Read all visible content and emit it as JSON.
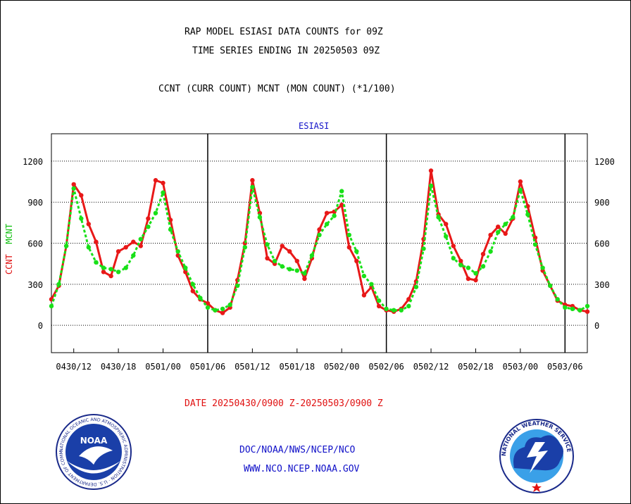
{
  "header": {
    "title_line1": "RAP MODEL ESIASI DATA COUNTS for 09Z",
    "title_line2": "TIME SERIES ENDING IN 20250503 09Z",
    "subtitle": "CCNT (CURR COUNT) MCNT (MON COUNT) (*1/100)"
  },
  "footer": {
    "org_line1": "DOC/NOAA/NWS/NCEP/NCO",
    "org_line2": "WWW.NCO.NCEP.NOAA.GOV",
    "noaa_logo_text": "NOAA",
    "noaa_ring_text": "NATIONAL OCEANIC AND ATMOSPHERIC ADMINISTRATION · U.S. DEPARTMENT OF COMMERCE",
    "nws_ring_text": "NATIONAL WEATHER SERVICE"
  },
  "colors": {
    "ccnt": "#e81818",
    "mcnt": "#18e018",
    "label_blue": "#1010c8",
    "axis_red": "#e01010"
  },
  "chart_data": {
    "type": "line",
    "panel_label": "ESIASI",
    "title": "RAP MODEL ESIASI DATA COUNTS for 09Z",
    "xlabel": "DATE 20250430/0900 Z-20250503/0900 Z",
    "ylabel_ccnt": "CCNT",
    "ylabel_mcnt": "MCNT",
    "ylim": [
      -200,
      1400
    ],
    "yticks": [
      0,
      300,
      600,
      900,
      1200
    ],
    "xlim": [
      0,
      72
    ],
    "xticks": [
      {
        "label": "0430/12",
        "x": 3
      },
      {
        "label": "0430/18",
        "x": 9
      },
      {
        "label": "0501/00",
        "x": 15
      },
      {
        "label": "0501/06",
        "x": 21
      },
      {
        "label": "0501/12",
        "x": 27
      },
      {
        "label": "0501/18",
        "x": 33
      },
      {
        "label": "0502/00",
        "x": 39
      },
      {
        "label": "0502/06",
        "x": 45
      },
      {
        "label": "0502/12",
        "x": 51
      },
      {
        "label": "0502/18",
        "x": 57
      },
      {
        "label": "0503/00",
        "x": 63
      },
      {
        "label": "0503/06",
        "x": 69
      }
    ],
    "day_dividers": [
      21,
      45,
      69
    ],
    "grid": true,
    "series": [
      {
        "name": "CCNT",
        "color": "#e81818",
        "values": [
          190,
          290,
          580,
          1030,
          950,
          740,
          610,
          390,
          360,
          540,
          570,
          610,
          580,
          780,
          1060,
          1040,
          770,
          510,
          390,
          250,
          190,
          160,
          110,
          90,
          130,
          330,
          600,
          1060,
          820,
          490,
          450,
          580,
          540,
          470,
          340,
          490,
          700,
          820,
          830,
          880,
          570,
          470,
          220,
          280,
          140,
          110,
          100,
          120,
          190,
          320,
          630,
          1130,
          810,
          740,
          580,
          470,
          340,
          330,
          520,
          660,
          720,
          670,
          780,
          1050,
          870,
          640,
          400,
          290,
          180,
          150,
          140,
          110,
          100
        ],
        "x_start": 0
      },
      {
        "name": "MCNT",
        "color": "#18e018",
        "values": [
          140,
          300,
          580,
          1000,
          780,
          570,
          460,
          420,
          410,
          390,
          420,
          510,
          630,
          720,
          820,
          970,
          700,
          540,
          420,
          300,
          200,
          130,
          110,
          120,
          150,
          290,
          570,
          1010,
          790,
          590,
          470,
          430,
          410,
          400,
          380,
          510,
          660,
          740,
          800,
          980,
          660,
          540,
          360,
          300,
          180,
          120,
          110,
          110,
          140,
          280,
          560,
          1020,
          790,
          650,
          490,
          440,
          420,
          380,
          430,
          540,
          680,
          740,
          790,
          990,
          810,
          590,
          420,
          290,
          190,
          130,
          120,
          110,
          140
        ],
        "x_start": 0
      }
    ]
  }
}
